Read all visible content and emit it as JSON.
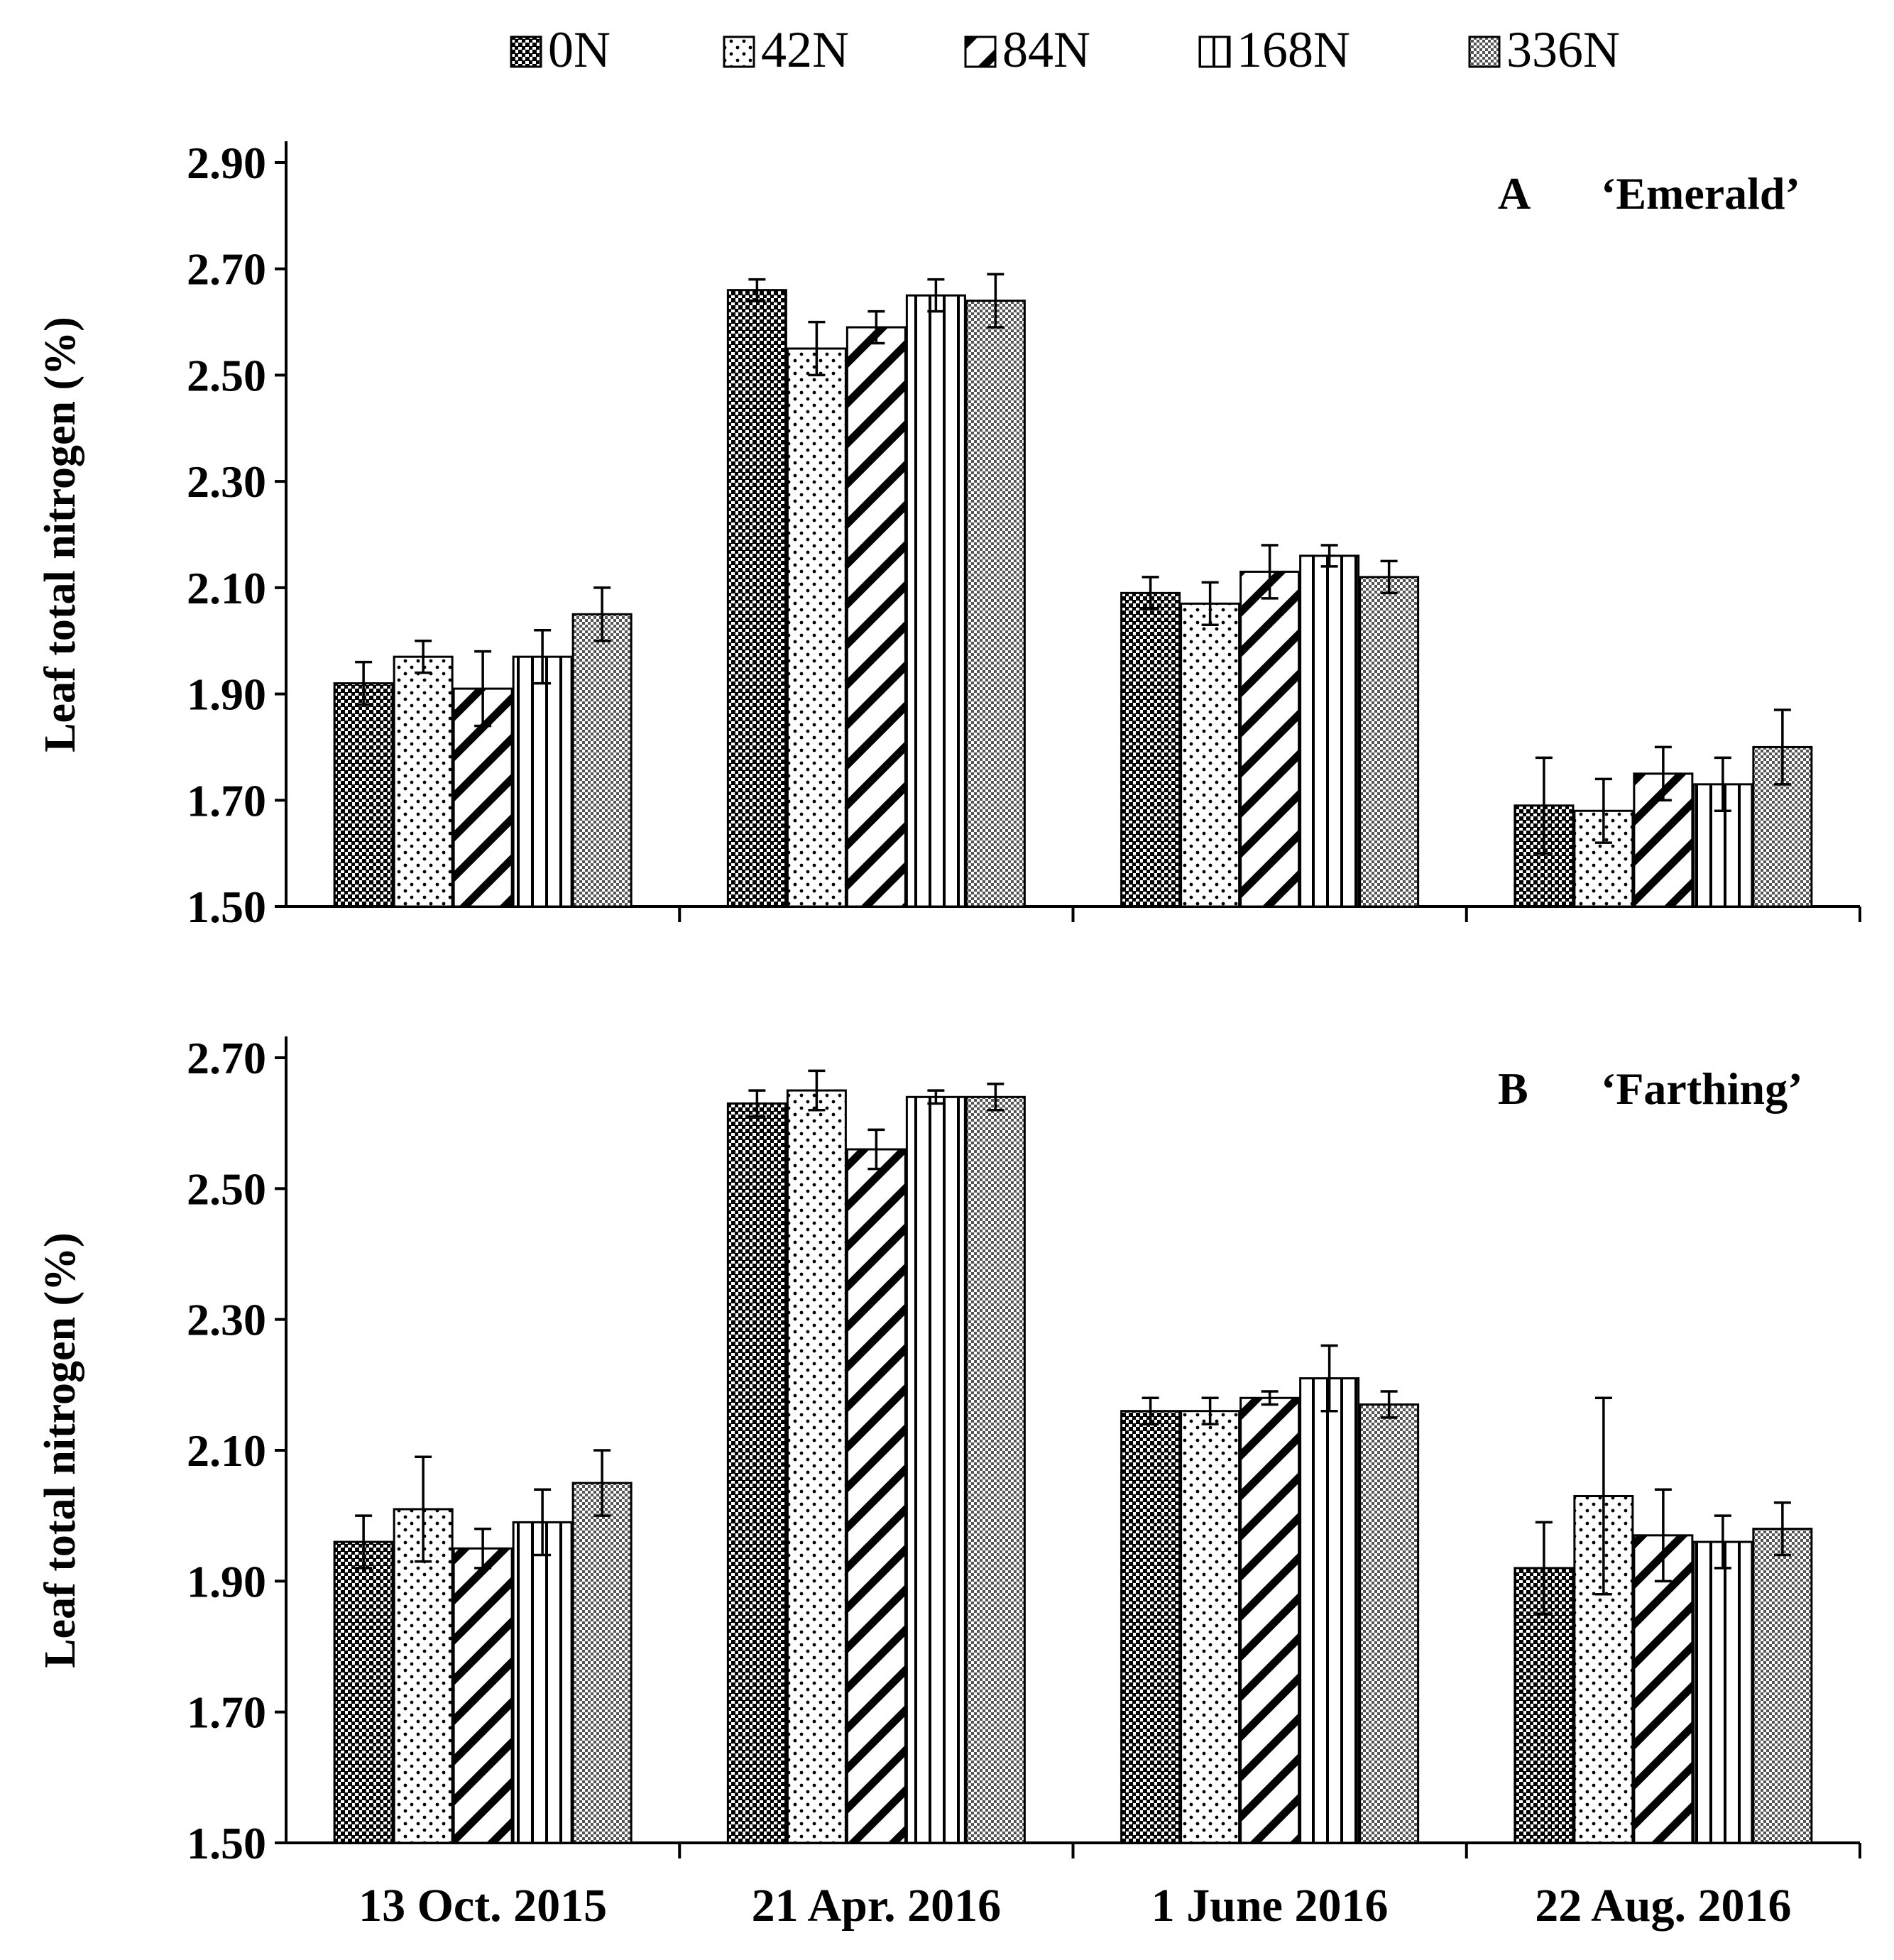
{
  "chart_data": {
    "legend": [
      "0N",
      "42N",
      "84N",
      "168N",
      "336N"
    ],
    "patterns": [
      "dense-dots",
      "sparse-dots",
      "diagonal-stripes",
      "vertical-stripes",
      "fine-grid"
    ],
    "panels": [
      {
        "type": "bar",
        "panel_label": "A",
        "cultivar": "‘Emerald’",
        "ylabel": "Leaf total nitrogen  (%)",
        "ylim": [
          1.5,
          2.9
        ],
        "yticks": [
          "1.50",
          "1.70",
          "1.90",
          "2.10",
          "2.30",
          "2.50",
          "2.70",
          "2.90"
        ],
        "categories": [
          "13 Oct. 2015",
          "21 Apr. 2016",
          "1 June 2016",
          "22 Aug. 2016"
        ],
        "series": [
          {
            "name": "0N",
            "values": [
              1.92,
              2.66,
              2.09,
              1.69
            ],
            "errors": [
              0.04,
              0.02,
              0.03,
              0.09
            ]
          },
          {
            "name": "42N",
            "values": [
              1.97,
              2.55,
              2.07,
              1.68
            ],
            "errors": [
              0.03,
              0.05,
              0.04,
              0.06
            ]
          },
          {
            "name": "84N",
            "values": [
              1.91,
              2.59,
              2.13,
              1.75
            ],
            "errors": [
              0.07,
              0.03,
              0.05,
              0.05
            ]
          },
          {
            "name": "168N",
            "values": [
              1.97,
              2.65,
              2.16,
              1.73
            ],
            "errors": [
              0.05,
              0.03,
              0.02,
              0.05
            ]
          },
          {
            "name": "336N",
            "values": [
              2.05,
              2.64,
              2.12,
              1.8
            ],
            "errors": [
              0.05,
              0.05,
              0.03,
              0.07
            ]
          }
        ]
      },
      {
        "type": "bar",
        "panel_label": "B",
        "cultivar": "‘Farthing’",
        "ylabel": "Leaf total nitrogen  (%)",
        "ylim": [
          1.5,
          2.7
        ],
        "yticks": [
          "1.50",
          "1.70",
          "1.90",
          "2.10",
          "2.30",
          "2.50",
          "2.70"
        ],
        "categories": [
          "13 Oct. 2015",
          "21 Apr. 2016",
          "1 June 2016",
          "22 Aug. 2016"
        ],
        "series": [
          {
            "name": "0N",
            "values": [
              1.96,
              2.63,
              2.16,
              1.92
            ],
            "errors": [
              0.04,
              0.02,
              0.02,
              0.07
            ]
          },
          {
            "name": "42N",
            "values": [
              2.01,
              2.65,
              2.16,
              2.03
            ],
            "errors": [
              0.08,
              0.03,
              0.02,
              0.15
            ]
          },
          {
            "name": "84N",
            "values": [
              1.95,
              2.56,
              2.18,
              1.97
            ],
            "errors": [
              0.03,
              0.03,
              0.01,
              0.07
            ]
          },
          {
            "name": "168N",
            "values": [
              1.99,
              2.64,
              2.21,
              1.96
            ],
            "errors": [
              0.05,
              0.01,
              0.05,
              0.04
            ]
          },
          {
            "name": "336N",
            "values": [
              2.05,
              2.64,
              2.17,
              1.98
            ],
            "errors": [
              0.05,
              0.02,
              0.02,
              0.04
            ]
          }
        ]
      }
    ]
  }
}
